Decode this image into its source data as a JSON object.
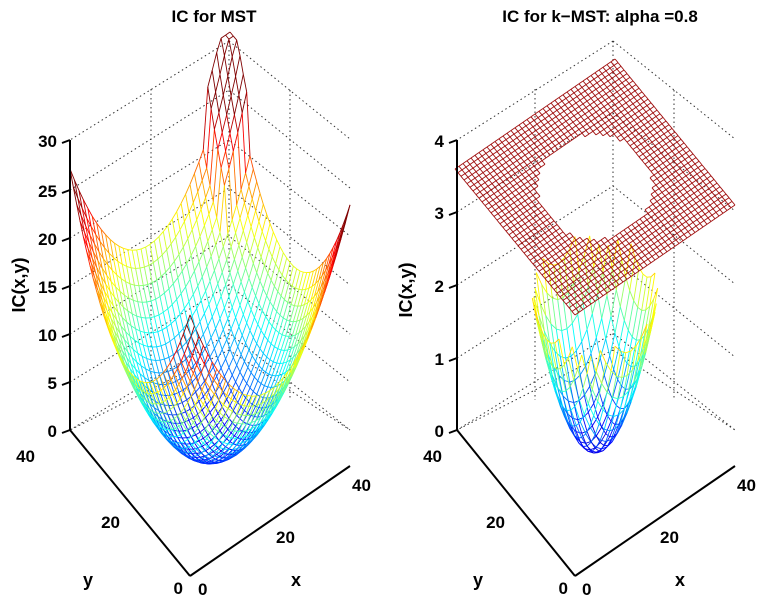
{
  "chart_data": [
    {
      "type": "surface",
      "title": "IC for MST",
      "xlabel": "x",
      "ylabel": "y",
      "zlabel": "IC(x,y)",
      "xlim": [
        0,
        40
      ],
      "ylim": [
        0,
        40
      ],
      "zlim": [
        0,
        30
      ],
      "x_ticks": [
        "0",
        "20",
        "40"
      ],
      "y_ticks": [
        "0",
        "20",
        "40"
      ],
      "z_ticks": [
        "0",
        "5",
        "10",
        "15",
        "20",
        "25",
        "30"
      ],
      "grid": true,
      "colormap": "jet",
      "z_max_corner": 24,
      "z_max_far": 30
    },
    {
      "type": "surface",
      "title": "IC for k−MST: alpha =0.8",
      "xlabel": "x",
      "ylabel": "y",
      "zlabel": "IC(x,y)",
      "xlim": [
        0,
        40
      ],
      "ylim": [
        0,
        40
      ],
      "zlim": [
        0,
        4
      ],
      "x_ticks": [
        "0",
        "20",
        "40"
      ],
      "y_ticks": [
        "0",
        "20",
        "40"
      ],
      "z_ticks": [
        "0",
        "1",
        "2",
        "3",
        "4"
      ],
      "grid": true,
      "colormap": "jet",
      "bowl_max": 2.2,
      "plateau_level": 3.6,
      "plateau_color": "#a01010"
    }
  ]
}
